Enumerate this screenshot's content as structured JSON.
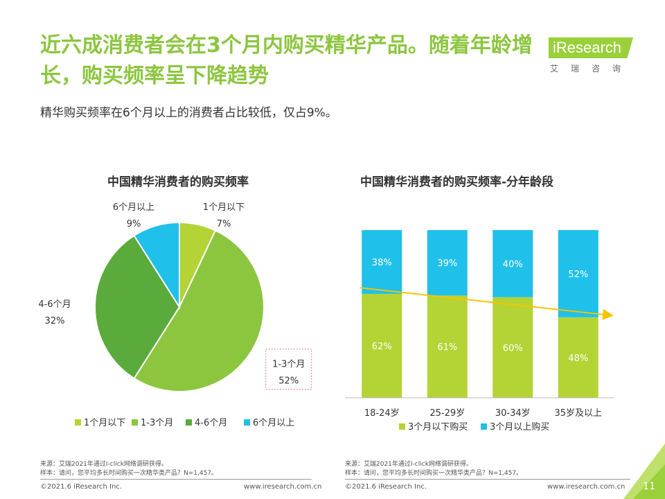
{
  "header": {
    "title": "近六成消费者会在3个月内购买精华产品。随着年龄增长，购买频率呈下降趋势",
    "subtitle": "精华购买频率在6个月以上的消费者占比较低，仅占9%。",
    "logo_text": "iResearch",
    "logo_sub": "艾瑞咨询"
  },
  "chart_data": [
    {
      "type": "pie",
      "title": "中国精华消费者的购买频率",
      "labels": [
        "1个月以下",
        "1-3个月",
        "4-6个月",
        "6个月以上"
      ],
      "values": [
        7,
        52,
        32,
        9
      ],
      "value_labels": [
        "7%",
        "52%",
        "32%",
        "9%"
      ],
      "colors": [
        "#b4d335",
        "#8cc63f",
        "#5aab3c",
        "#1fc0ea"
      ],
      "legend_position": "bottom",
      "highlighted": "1-3个月"
    },
    {
      "type": "bar",
      "stacked": true,
      "percent": true,
      "title": "中国精华消费者的购买频率-分年龄段",
      "categories": [
        "18-24岁",
        "25-29岁",
        "30-34岁",
        "35岁及以上"
      ],
      "series": [
        {
          "name": "3个月以下购买",
          "values": [
            62,
            61,
            60,
            48
          ],
          "labels": [
            "62%",
            "61%",
            "60%",
            "48%"
          ],
          "color": "#b4d335"
        },
        {
          "name": "3个月以上购买",
          "values": [
            38,
            39,
            40,
            52
          ],
          "labels": [
            "38%",
            "39%",
            "40%",
            "52%"
          ],
          "color": "#1fc0ea"
        }
      ],
      "ylim": [
        0,
        100
      ],
      "trend_color": "#f5c400",
      "legend_position": "bottom"
    }
  ],
  "footnotes": {
    "left_source": "来源：艾瑞2021年通过I-click网络调研获得。",
    "left_sample": "样本：请问，您平均多长时间购买一次精华类产品？N=1,457。",
    "right_source": "来源：艾瑞2021年通过I-click网络调研获得。",
    "right_sample": "样本：请问，您平均多长时间购买一次精华类产品？N=1,457。"
  },
  "footer": {
    "copyright_left": "©2021.6 iResearch Inc.",
    "url_left": "www.iresearch.com.cn",
    "copyright_right": "©2021.6 iResearch Inc.",
    "url_right": "www.iresearch.com.cn",
    "page_number": "11"
  }
}
